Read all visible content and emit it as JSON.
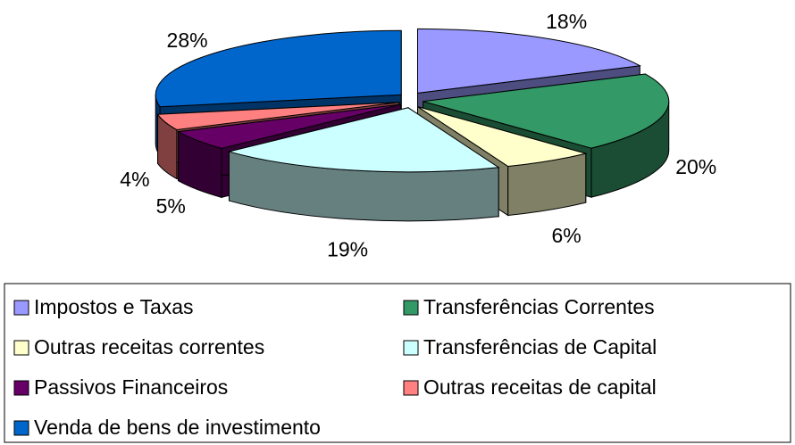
{
  "chart_data": {
    "type": "pie3d",
    "categories": [
      "Impostos e Taxas",
      "Transferências Correntes",
      "Outras receitas correntes",
      "Transferências de Capital",
      "Passivos Financeiros",
      "Outras receitas de capital",
      "Venda de bens de investimento"
    ],
    "values": [
      18,
      20,
      6,
      19,
      5,
      4,
      28
    ],
    "value_labels": [
      "18%",
      "20%",
      "6%",
      "19%",
      "5%",
      "4%",
      "28%"
    ],
    "colors": [
      "#9999ff",
      "#339966",
      "#ffffcc",
      "#ccffff",
      "#660066",
      "#ff8080",
      "#0066cc"
    ],
    "legend": "bottom"
  }
}
